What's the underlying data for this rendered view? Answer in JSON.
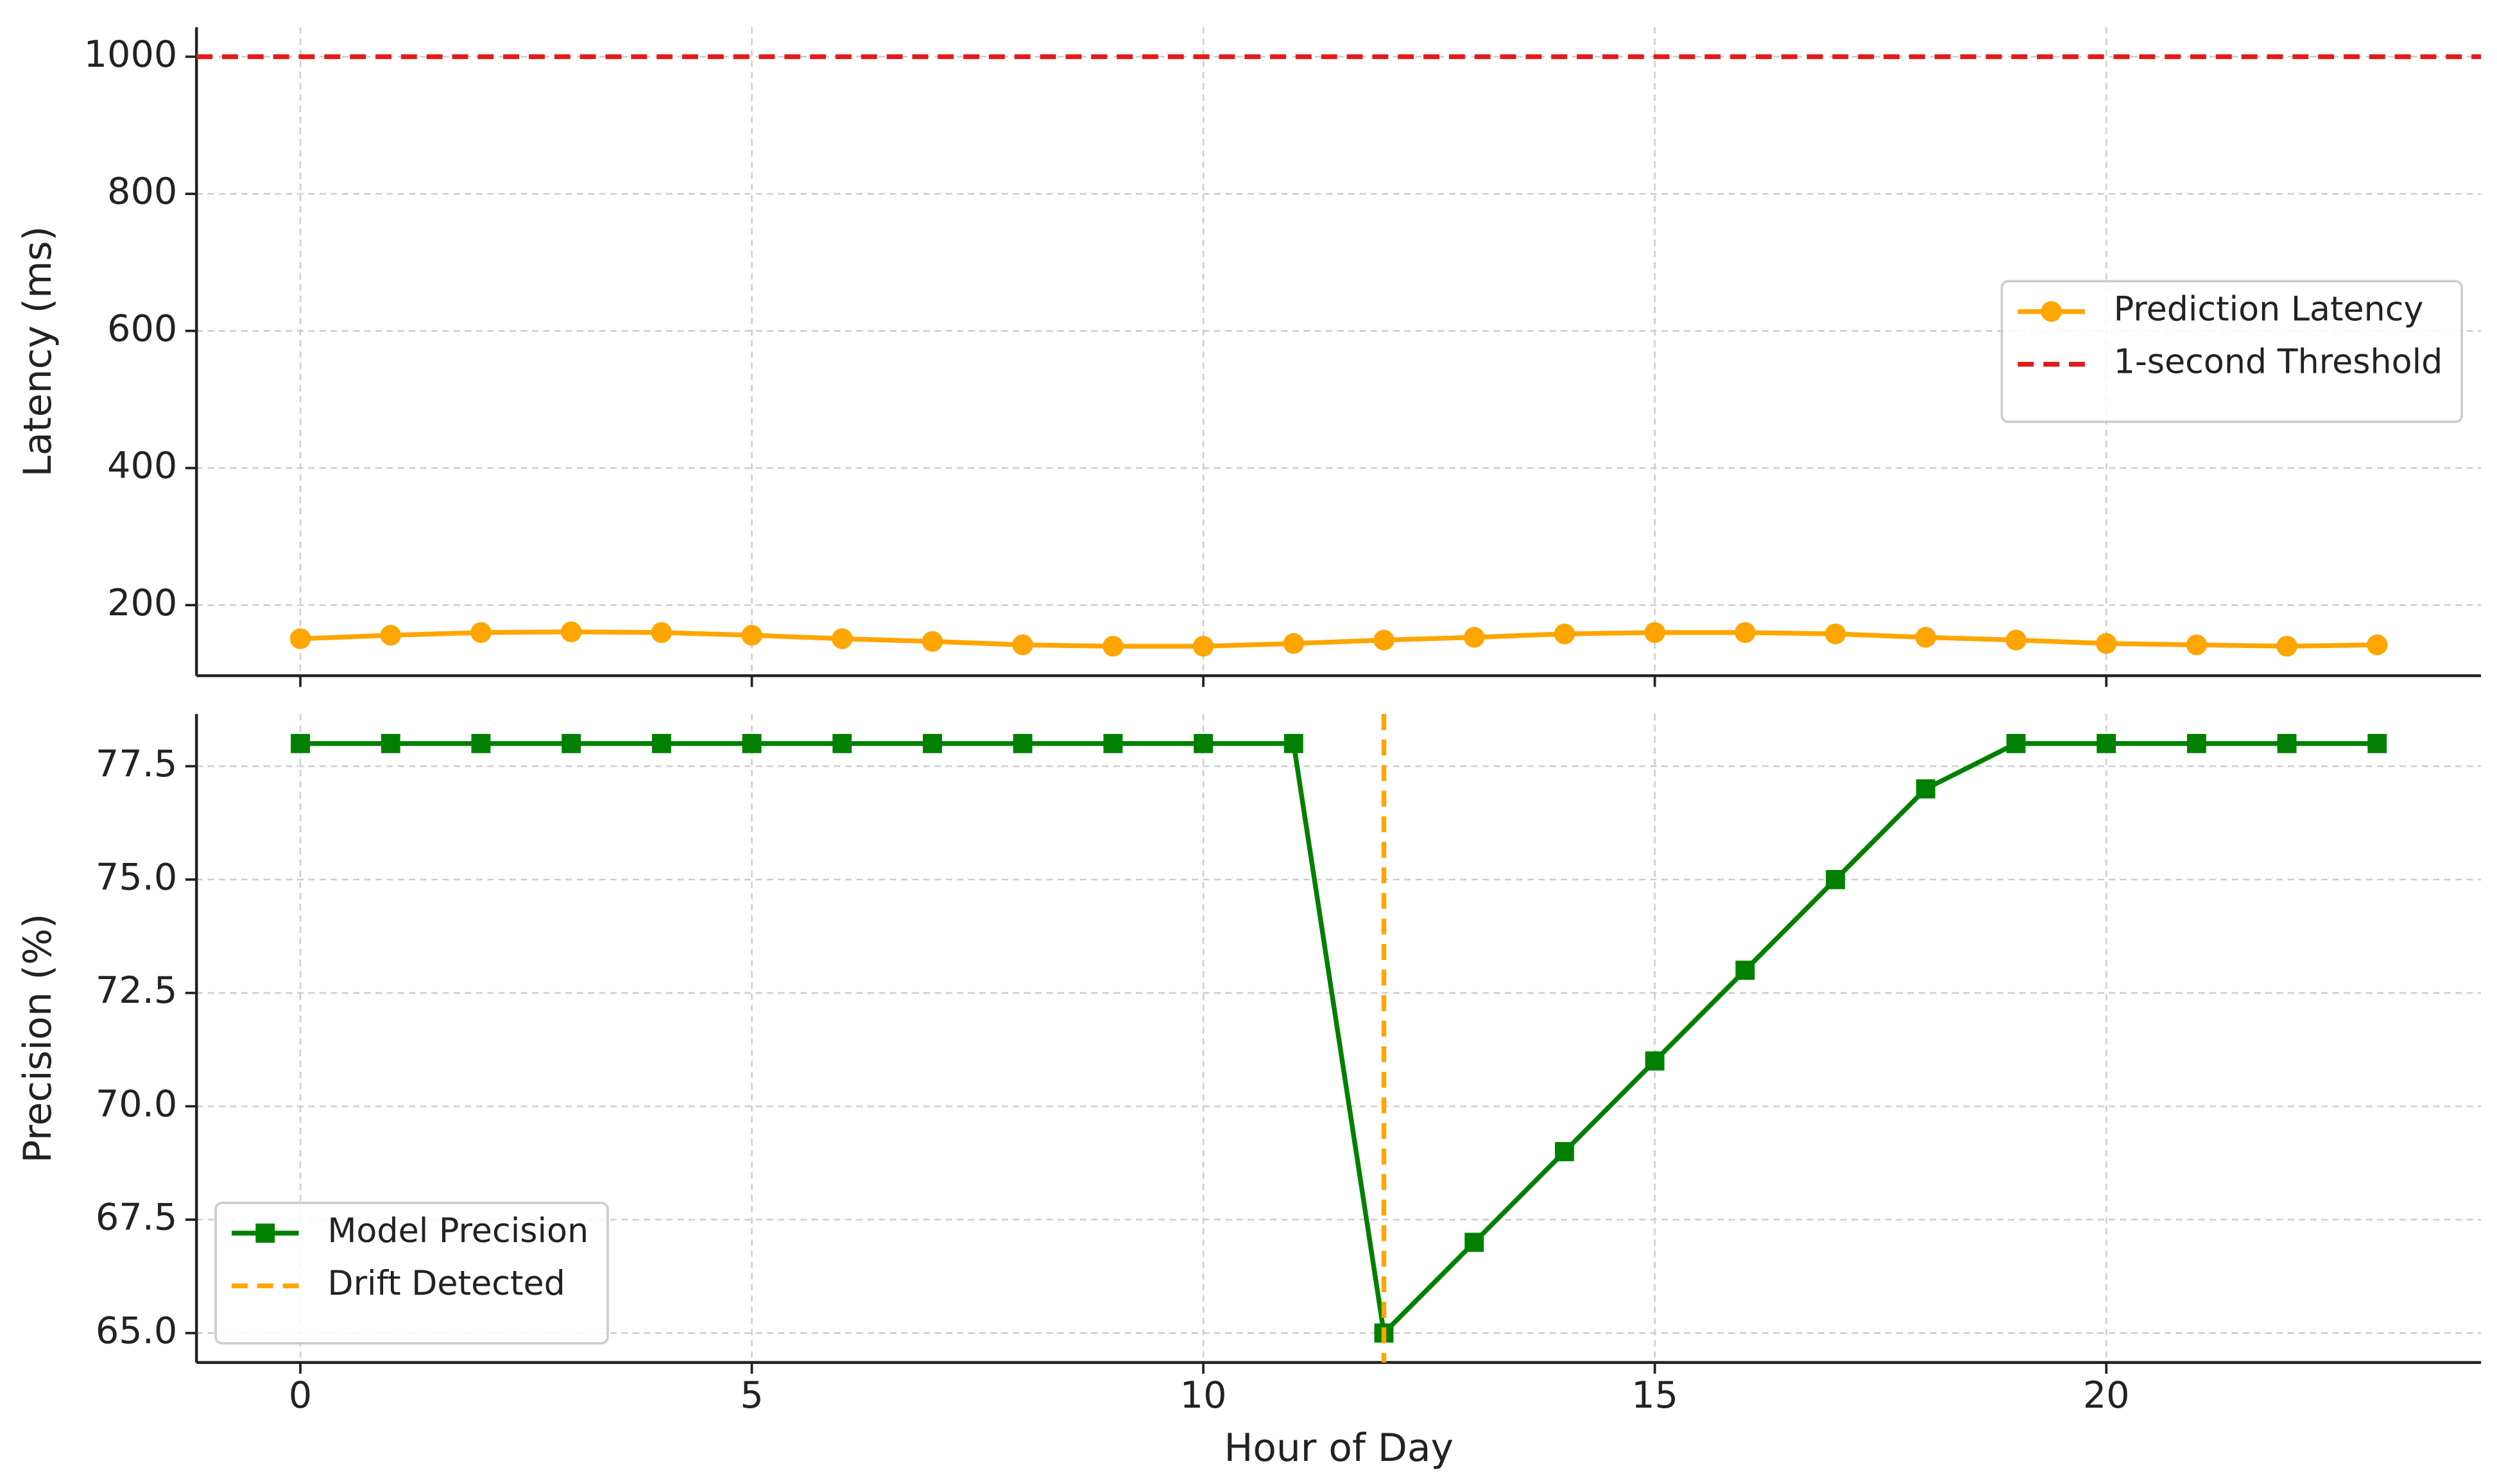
{
  "chart_data": [
    {
      "type": "line",
      "ylabel": "Latency (ms)",
      "x": [
        0,
        1,
        2,
        3,
        4,
        5,
        6,
        7,
        8,
        9,
        10,
        11,
        12,
        13,
        14,
        15,
        16,
        17,
        18,
        19,
        20,
        21,
        22,
        23
      ],
      "series": [
        {
          "name": "Prediction Latency",
          "color": "#ffa500",
          "marker": "circle",
          "values": [
            151,
            156,
            160,
            161,
            160,
            156,
            151,
            147,
            142,
            140,
            140,
            144,
            149,
            153,
            158,
            160,
            160,
            158,
            153,
            149,
            144,
            142,
            140,
            142
          ]
        }
      ],
      "hline": {
        "name": "1-second Threshold",
        "value": 1000,
        "color": "#e31a1c",
        "dashed": true
      },
      "xlim": [
        -1.15,
        24.15
      ],
      "xticks": [
        0,
        5,
        10,
        15,
        20
      ],
      "ylim": [
        97,
        1043
      ],
      "yticks": [
        200,
        400,
        600,
        800,
        1000
      ],
      "grid": true,
      "legend": "center right"
    },
    {
      "type": "line",
      "xlabel": "Hour of Day",
      "ylabel": "Precision (%)",
      "x": [
        0,
        1,
        2,
        3,
        4,
        5,
        6,
        7,
        8,
        9,
        10,
        11,
        12,
        13,
        14,
        15,
        16,
        17,
        18,
        19,
        20,
        21,
        22,
        23
      ],
      "series": [
        {
          "name": "Model Precision",
          "color": "#008000",
          "marker": "square",
          "values": [
            78,
            78,
            78,
            78,
            78,
            78,
            78,
            78,
            78,
            78,
            78,
            78,
            65,
            67,
            69,
            71,
            73,
            75,
            77,
            78,
            78,
            78,
            78,
            78
          ]
        }
      ],
      "vline": {
        "name": "Drift Detected",
        "value": 12,
        "color": "#ffa500",
        "dashed": true
      },
      "xlim": [
        -1.15,
        24.15
      ],
      "xticks": [
        0,
        5,
        10,
        15,
        20
      ],
      "ylim": [
        64.35,
        78.65
      ],
      "yticks": [
        {
          "value": 65,
          "label": "65.0"
        },
        {
          "value": 67.5,
          "label": "67.5"
        },
        {
          "value": 70,
          "label": "70.0"
        },
        {
          "value": 72.5,
          "label": "72.5"
        },
        {
          "value": 75,
          "label": "75.0"
        },
        {
          "value": 77.5,
          "label": "77.5"
        }
      ],
      "grid": true,
      "legend": "lower left"
    }
  ]
}
